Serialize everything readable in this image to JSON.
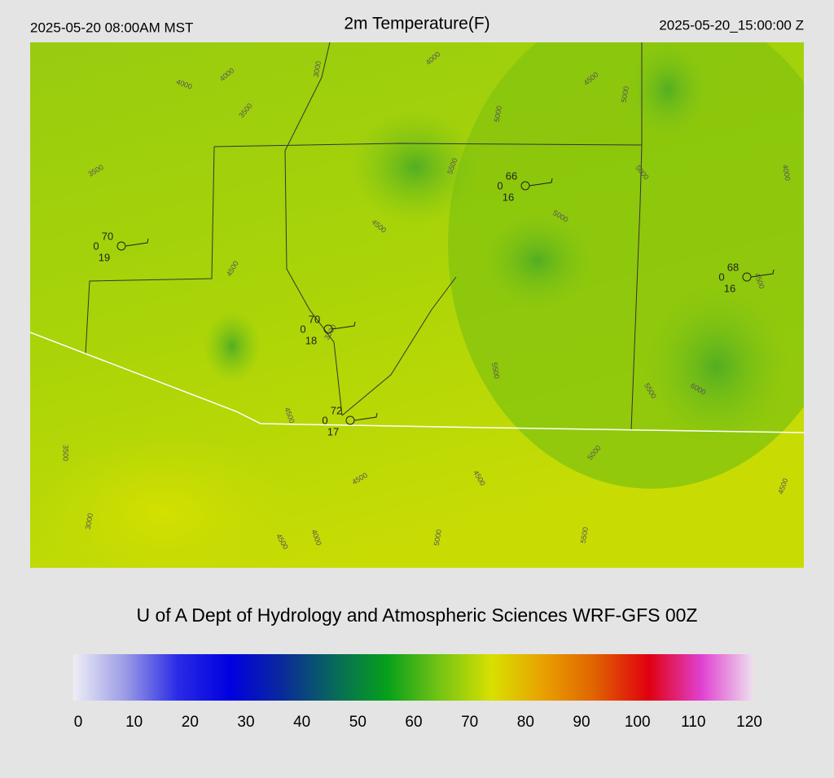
{
  "header": {
    "left": "2025-05-20 08:00AM MST",
    "title": "2m Temperature(F)",
    "right": "2025-05-20_15:00:00 Z"
  },
  "stations": [
    {
      "temp": 70,
      "left": 0,
      "bottom": 19
    },
    {
      "temp": 66,
      "left": 0,
      "bottom": 16
    },
    {
      "temp": 68,
      "left": 0,
      "bottom": 16
    },
    {
      "temp": 70,
      "left": 0,
      "bottom": 18
    },
    {
      "temp": 72,
      "left": 0,
      "bottom": 17
    }
  ],
  "contour_labels": [
    "4000",
    "4000",
    "3000",
    "4000",
    "4500",
    "5000",
    "3500",
    "5000",
    "3500",
    "5500",
    "5000",
    "4000",
    "5000",
    "4500",
    "4500",
    "4500",
    "3500",
    "5500",
    "5500",
    "6000",
    "4500",
    "3500",
    "5000",
    "4500",
    "4500",
    "4500",
    "3000",
    "4000",
    "5000",
    "4500",
    "5500"
  ],
  "footer": "U of A Dept of Hydrology and Atmospheric Sciences WRF-GFS 00Z",
  "colorbar": {
    "lim": [
      0,
      120
    ],
    "ticks": [
      0,
      10,
      20,
      30,
      40,
      50,
      60,
      70,
      80,
      90,
      100,
      110,
      120
    ],
    "colors": [
      "#eeeef6",
      "#9a9ae6",
      "#2a2ae6",
      "#0000e0",
      "#0a2a9a",
      "#086a5a",
      "#06a01a",
      "#74c414",
      "#d8e000",
      "#e8a000",
      "#e06000",
      "#e00010",
      "#e040d0",
      "#eee0ee"
    ]
  }
}
